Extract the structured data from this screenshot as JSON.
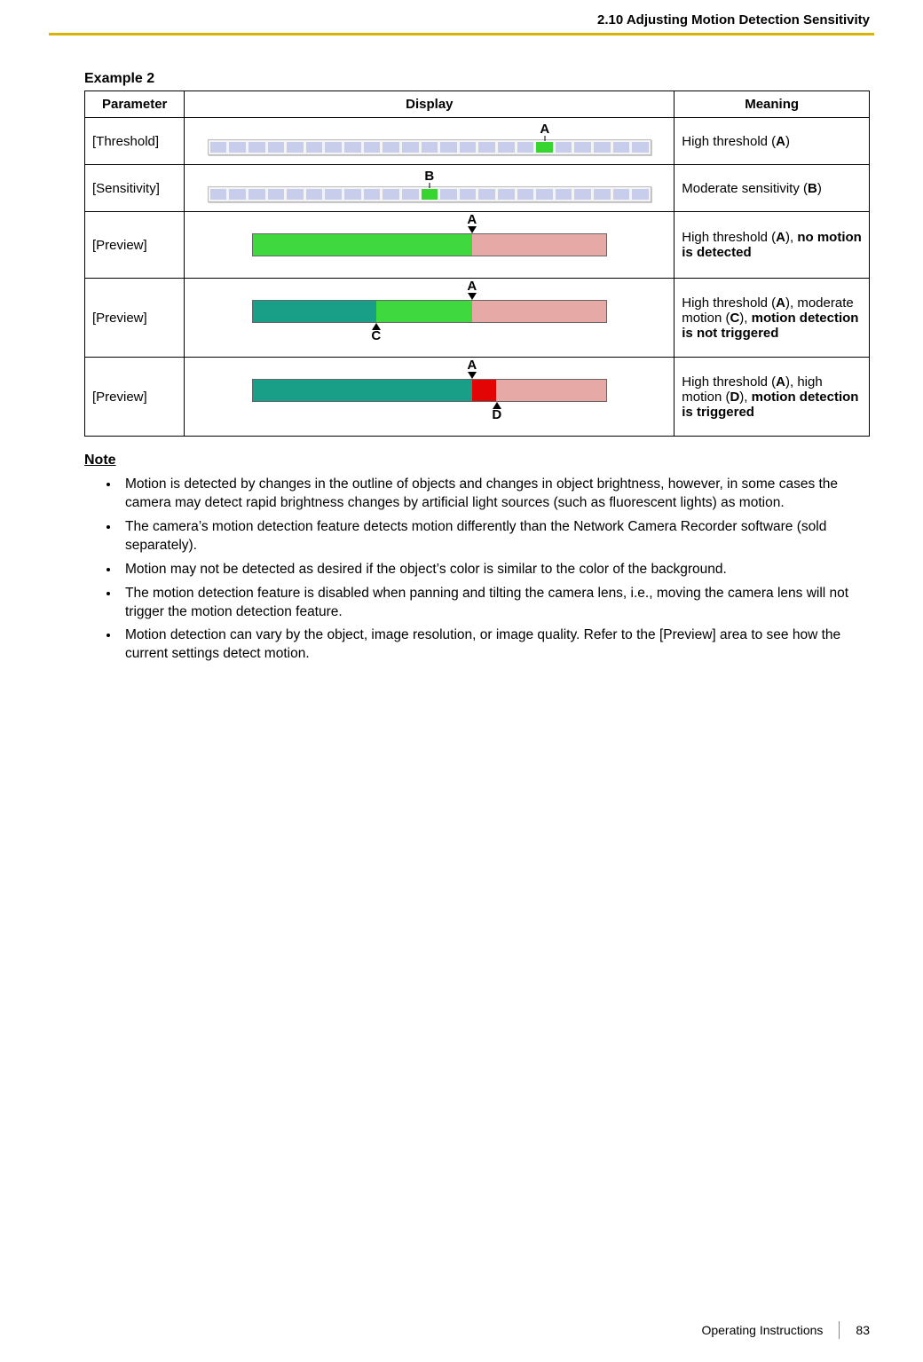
{
  "header": {
    "section_title": "2.10 Adjusting Motion Detection Sensitivity",
    "accent_color": "#d8b400"
  },
  "example": {
    "title": "Example 2",
    "table_headers": {
      "parameter": "Parameter",
      "display": "Display",
      "meaning": "Meaning"
    },
    "colors": {
      "segment_idle": "#c7cdeb",
      "segment_active": "#38d430",
      "preview_green": "#3fd93f",
      "preview_teal": "#199e87",
      "preview_pink": "#e6a9a5",
      "preview_red": "#e30505",
      "border": "#000000"
    },
    "rows": [
      {
        "parameter": "[Threshold]",
        "display": {
          "type": "slider",
          "segments": 23,
          "active_index": 17,
          "label": "A",
          "label_pos_pct": 76
        },
        "meaning_html": "High threshold (<b>A</b>)"
      },
      {
        "parameter": "[Sensitivity]",
        "display": {
          "type": "slider",
          "segments": 23,
          "active_index": 11,
          "label": "B",
          "label_pos_pct": 50
        },
        "meaning_html": "Moderate sensitivity (<b>B</b>)"
      },
      {
        "parameter": "[Preview]",
        "display": {
          "type": "preview",
          "bar_segments": [
            {
              "color": "preview_green",
              "width_pct": 62
            },
            {
              "color": "preview_pink",
              "width_pct": 38
            }
          ],
          "top_marker": {
            "label": "A",
            "pos_pct": 62
          },
          "bottom_marker": null
        },
        "meaning_html": "High threshold (<b>A</b>), <b>no motion is detected</b>"
      },
      {
        "parameter": "[Preview]",
        "display": {
          "type": "preview",
          "bar_segments": [
            {
              "color": "preview_teal",
              "width_pct": 35
            },
            {
              "color": "preview_green",
              "width_pct": 27
            },
            {
              "color": "preview_pink",
              "width_pct": 38
            }
          ],
          "top_marker": {
            "label": "A",
            "pos_pct": 62
          },
          "bottom_marker": {
            "label": "C",
            "pos_pct": 35
          }
        },
        "meaning_html": "High threshold (<b>A</b>), moderate motion (<b>C</b>), <b>motion detection is not triggered</b>"
      },
      {
        "parameter": "[Preview]",
        "display": {
          "type": "preview",
          "bar_segments": [
            {
              "color": "preview_teal",
              "width_pct": 62
            },
            {
              "color": "preview_red",
              "width_pct": 7
            },
            {
              "color": "preview_pink",
              "width_pct": 31
            }
          ],
          "top_marker": {
            "label": "A",
            "pos_pct": 62
          },
          "bottom_marker": {
            "label": "D",
            "pos_pct": 69
          }
        },
        "meaning_html": "High threshold (<b>A</b>), high motion (<b>D</b>), <b>motion detection is triggered</b>"
      }
    ]
  },
  "notes": {
    "heading": "Note",
    "items": [
      "Motion is detected by changes in the outline of objects and changes in object brightness, however, in some cases the camera may detect rapid brightness changes by artificial light sources (such as fluorescent lights) as motion.",
      "The camera’s motion detection feature detects motion differently than the Network Camera Recorder software (sold separately).",
      "Motion may not be detected as desired if the object’s color is similar to the color of the background.",
      "The motion detection feature is disabled when panning and tilting the camera lens, i.e., moving the camera lens will not trigger the motion detection feature.",
      "Motion detection can vary by the object, image resolution, or image quality. Refer to the [Preview] area to see how the current settings detect motion."
    ]
  },
  "footer": {
    "doc_title": "Operating Instructions",
    "page_number": "83"
  }
}
